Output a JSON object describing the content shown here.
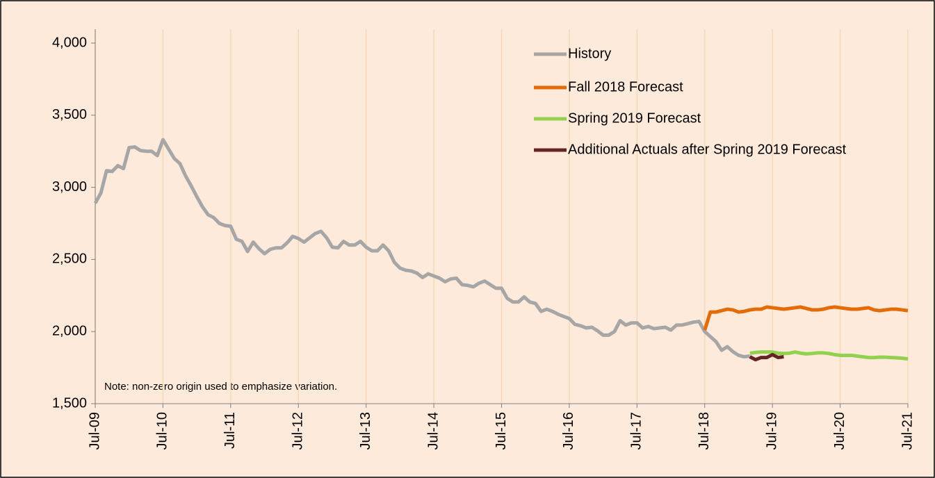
{
  "chart_data": {
    "type": "line",
    "ylim": [
      1500,
      4000
    ],
    "yticks": [
      {
        "value": 1500,
        "label": "1,500"
      },
      {
        "value": 2000,
        "label": "2,000"
      },
      {
        "value": 2500,
        "label": "2,500"
      },
      {
        "value": 3000,
        "label": "3,000"
      },
      {
        "value": 3500,
        "label": "3,500"
      },
      {
        "value": 4000,
        "label": "4,000"
      }
    ],
    "xlim": [
      "2009-07",
      "2021-07"
    ],
    "xticks": [
      {
        "value": "2009-07",
        "label": "Jul-09"
      },
      {
        "value": "2010-07",
        "label": "Jul-10"
      },
      {
        "value": "2011-07",
        "label": "Jul-11"
      },
      {
        "value": "2012-07",
        "label": "Jul-12"
      },
      {
        "value": "2013-07",
        "label": "Jul-13"
      },
      {
        "value": "2014-07",
        "label": "Jul-14"
      },
      {
        "value": "2015-07",
        "label": "Jul-15"
      },
      {
        "value": "2016-07",
        "label": "Jul-16"
      },
      {
        "value": "2017-07",
        "label": "Jul-17"
      },
      {
        "value": "2018-07",
        "label": "Jul-18"
      },
      {
        "value": "2019-07",
        "label": "Jul-19"
      },
      {
        "value": "2020-07",
        "label": "Jul-20"
      },
      {
        "value": "2021-07",
        "label": "Jul-21"
      }
    ],
    "grid": true,
    "legend": "upper right",
    "annotation": "Note: non-zero origin used to emphasize variation.",
    "series": [
      {
        "name": "History",
        "color": "#a6a6a6",
        "x": [
          "2009-07",
          "2009-08",
          "2009-09",
          "2009-10",
          "2009-11",
          "2009-12",
          "2010-01",
          "2010-02",
          "2010-03",
          "2010-04",
          "2010-05",
          "2010-06",
          "2010-07",
          "2010-08",
          "2010-09",
          "2010-10",
          "2010-11",
          "2010-12",
          "2011-01",
          "2011-02",
          "2011-03",
          "2011-04",
          "2011-05",
          "2011-06",
          "2011-07",
          "2011-08",
          "2011-09",
          "2011-10",
          "2011-11",
          "2011-12",
          "2012-01",
          "2012-02",
          "2012-03",
          "2012-04",
          "2012-05",
          "2012-06",
          "2012-07",
          "2012-08",
          "2012-09",
          "2012-10",
          "2012-11",
          "2012-12",
          "2013-01",
          "2013-02",
          "2013-03",
          "2013-04",
          "2013-05",
          "2013-06",
          "2013-07",
          "2013-08",
          "2013-09",
          "2013-10",
          "2013-11",
          "2013-12",
          "2014-01",
          "2014-02",
          "2014-03",
          "2014-04",
          "2014-05",
          "2014-06",
          "2014-07",
          "2014-08",
          "2014-09",
          "2014-10",
          "2014-11",
          "2014-12",
          "2015-01",
          "2015-02",
          "2015-03",
          "2015-04",
          "2015-05",
          "2015-06",
          "2015-07",
          "2015-08",
          "2015-09",
          "2015-10",
          "2015-11",
          "2015-12",
          "2016-01",
          "2016-02",
          "2016-03",
          "2016-04",
          "2016-05",
          "2016-06",
          "2016-07",
          "2016-08",
          "2016-09",
          "2016-10",
          "2016-11",
          "2016-12",
          "2017-01",
          "2017-02",
          "2017-03",
          "2017-04",
          "2017-05",
          "2017-06",
          "2017-07",
          "2017-08",
          "2017-09",
          "2017-10",
          "2017-11",
          "2017-12",
          "2018-01",
          "2018-02",
          "2018-03",
          "2018-04",
          "2018-05",
          "2018-06",
          "2018-07",
          "2018-08",
          "2018-09",
          "2018-10",
          "2018-11",
          "2018-12",
          "2019-01",
          "2019-02",
          "2019-03"
        ],
        "values": [
          2890,
          2960,
          3115,
          3110,
          3150,
          3130,
          3275,
          3280,
          3255,
          3250,
          3250,
          3220,
          3330,
          3265,
          3200,
          3165,
          3080,
          3010,
          2935,
          2865,
          2810,
          2790,
          2750,
          2735,
          2730,
          2640,
          2625,
          2555,
          2620,
          2575,
          2540,
          2570,
          2580,
          2580,
          2615,
          2660,
          2645,
          2620,
          2650,
          2680,
          2695,
          2650,
          2585,
          2580,
          2625,
          2600,
          2600,
          2625,
          2585,
          2560,
          2560,
          2600,
          2560,
          2480,
          2440,
          2425,
          2420,
          2405,
          2375,
          2400,
          2385,
          2370,
          2345,
          2365,
          2370,
          2325,
          2320,
          2310,
          2335,
          2350,
          2325,
          2300,
          2300,
          2230,
          2205,
          2205,
          2240,
          2205,
          2195,
          2140,
          2155,
          2140,
          2120,
          2105,
          2090,
          2050,
          2040,
          2025,
          2030,
          2005,
          1975,
          1975,
          2000,
          2075,
          2045,
          2060,
          2060,
          2025,
          2035,
          2020,
          2025,
          2030,
          2010,
          2045,
          2045,
          2055,
          2065,
          2070,
          2000,
          1965,
          1930,
          1870,
          1895,
          1860,
          1835,
          1825,
          1830
        ]
      },
      {
        "name": "Fall 2018 Forecast",
        "color": "#e36c09",
        "x": [
          "2018-07",
          "2018-08",
          "2018-09",
          "2018-10",
          "2018-11",
          "2018-12",
          "2019-01",
          "2019-02",
          "2019-03",
          "2019-04",
          "2019-05",
          "2019-06",
          "2019-07",
          "2019-08",
          "2019-09",
          "2019-10",
          "2019-11",
          "2019-12",
          "2020-01",
          "2020-02",
          "2020-03",
          "2020-04",
          "2020-05",
          "2020-06",
          "2020-07",
          "2020-08",
          "2020-09",
          "2020-10",
          "2020-11",
          "2020-12",
          "2021-01",
          "2021-02",
          "2021-03",
          "2021-04",
          "2021-05",
          "2021-06",
          "2021-07"
        ],
        "values": [
          2010,
          2135,
          2135,
          2145,
          2155,
          2150,
          2135,
          2140,
          2150,
          2155,
          2155,
          2170,
          2165,
          2160,
          2155,
          2160,
          2165,
          2170,
          2160,
          2150,
          2150,
          2155,
          2165,
          2170,
          2165,
          2160,
          2155,
          2155,
          2160,
          2165,
          2150,
          2145,
          2150,
          2155,
          2155,
          2150,
          2145
        ]
      },
      {
        "name": "Spring 2019 Forecast",
        "color": "#92d050",
        "x": [
          "2019-03",
          "2019-04",
          "2019-05",
          "2019-06",
          "2019-07",
          "2019-08",
          "2019-09",
          "2019-10",
          "2019-11",
          "2019-12",
          "2020-01",
          "2020-02",
          "2020-03",
          "2020-04",
          "2020-05",
          "2020-06",
          "2020-07",
          "2020-08",
          "2020-09",
          "2020-10",
          "2020-11",
          "2020-12",
          "2021-01",
          "2021-02",
          "2021-03",
          "2021-04",
          "2021-05",
          "2021-06",
          "2021-07"
        ],
        "values": [
          1850,
          1855,
          1858,
          1858,
          1858,
          1850,
          1848,
          1850,
          1858,
          1850,
          1845,
          1848,
          1852,
          1852,
          1848,
          1840,
          1835,
          1835,
          1835,
          1830,
          1825,
          1820,
          1820,
          1822,
          1822,
          1820,
          1818,
          1815,
          1810
        ]
      },
      {
        "name": "Additional Actuals after Spring 2019 Forecast",
        "color": "#632523",
        "x": [
          "2019-03",
          "2019-04",
          "2019-05",
          "2019-06",
          "2019-07",
          "2019-08",
          "2019-09"
        ],
        "values": [
          1825,
          1805,
          1820,
          1820,
          1840,
          1820,
          1825
        ]
      }
    ]
  }
}
